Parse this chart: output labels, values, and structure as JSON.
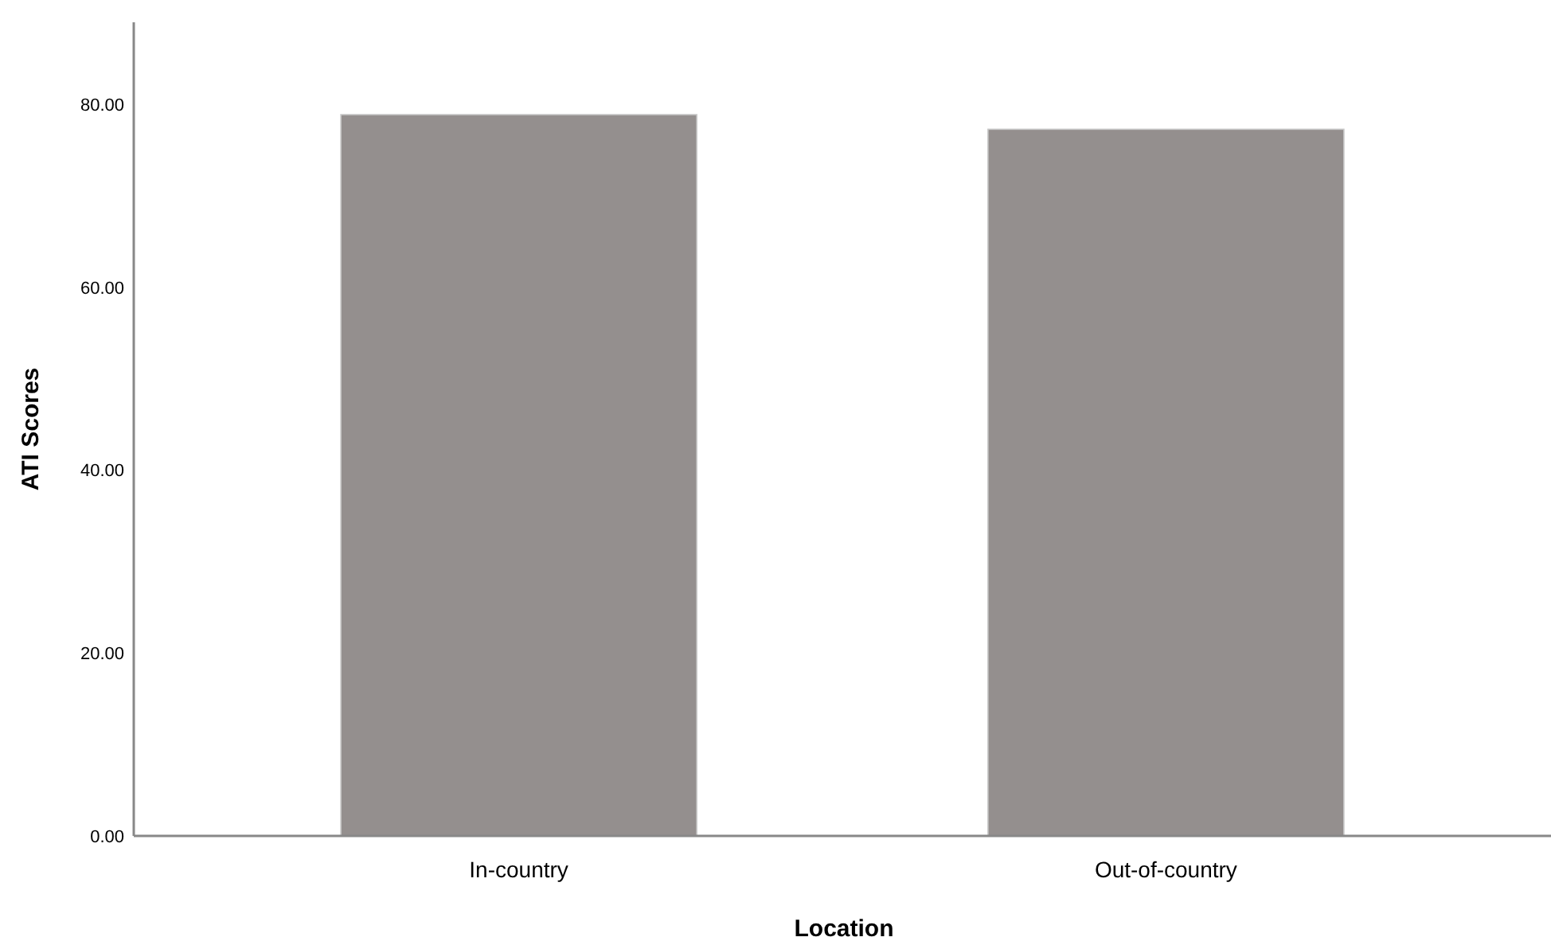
{
  "chart_data": {
    "type": "bar",
    "xlabel": "Location",
    "ylabel": "ATI Scores",
    "categories": [
      "In-country",
      "Out-of-country"
    ],
    "values": [
      78.9,
      77.3
    ],
    "color": "#948f8e",
    "ylim": [
      0,
      89
    ],
    "yticks": [
      {
        "value": 0,
        "label": "0.00"
      },
      {
        "value": 20,
        "label": "20.00"
      },
      {
        "value": 40,
        "label": "40.00"
      },
      {
        "value": 60,
        "label": "60.00"
      },
      {
        "value": 80,
        "label": "80.00"
      }
    ]
  }
}
